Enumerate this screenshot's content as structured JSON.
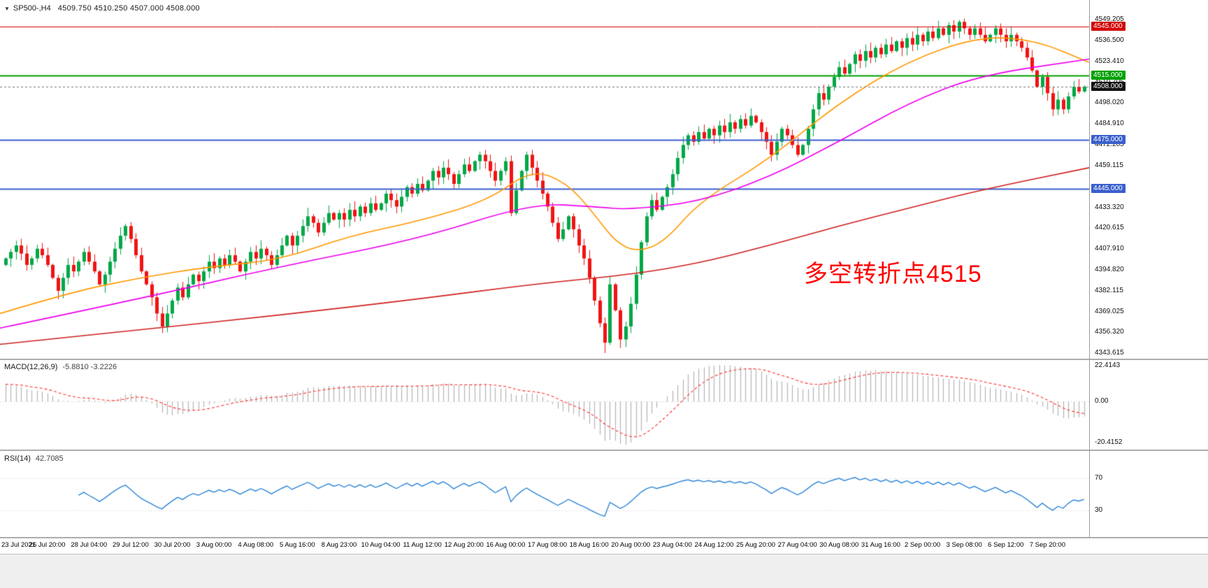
{
  "window": {
    "background": "#FFFFFF",
    "footer_color": "#EFEFEF"
  },
  "header": {
    "expander_icon": "▼",
    "symbol": "SP500-,H4",
    "ohlc": "4509.750 4510.250 4507.000 4508.000"
  },
  "annotation": {
    "text": "多空转折点4515",
    "color": "#FF0000"
  },
  "time_axis": {
    "bars_per_label": 8,
    "labels": [
      "23 Jul 2021",
      "26 Jul 20:00",
      "28 Jul 04:00",
      "29 Jul 12:00",
      "30 Jul 20:00",
      "3 Aug 00:00",
      "4 Aug 08:00",
      "5 Aug 16:00",
      "8 Aug 23:00",
      "10 Aug 04:00",
      "11 Aug 12:00",
      "12 Aug 20:00",
      "16 Aug 00:00",
      "17 Aug 08:00",
      "18 Aug 16:00",
      "20 Aug 00:00",
      "23 Aug 04:00",
      "24 Aug 12:00",
      "25 Aug 20:00",
      "27 Aug 04:00",
      "30 Aug 08:00",
      "31 Aug 16:00",
      "2 Sep 00:00",
      "3 Sep 08:00",
      "6 Sep 12:00",
      "7 Sep 20:00"
    ]
  },
  "chart_data": [
    {
      "type": "candlestick",
      "title": "SP500-,H4",
      "timeframe": "H4",
      "ylim": [
        4341,
        4552
      ],
      "extremes": {
        "high": 4549.205,
        "low": 4343.615
      },
      "y_ticks": [
        "4549.205",
        "4536.500",
        "4523.410",
        "4510.705",
        "4498.020",
        "4484.910",
        "4472.205",
        "4459.115",
        "4433.320",
        "4420.615",
        "4407.910",
        "4394.820",
        "4382.115",
        "4369.025",
        "4356.320",
        "4343.615"
      ],
      "badges": [
        {
          "text": "4545.000",
          "color": "#D40000"
        },
        {
          "text": "4515.000",
          "color": "#00A000"
        },
        {
          "text": "4508.000",
          "color": "#111111"
        },
        {
          "text": "4475.000",
          "color": "#3A5FCD"
        },
        {
          "text": "4445.000",
          "color": "#3A5FCD"
        }
      ],
      "horizontal_lines": [
        {
          "price": 4545.0,
          "color": "#D40000",
          "width": 1
        },
        {
          "price": 4515.0,
          "color": "#00A000",
          "width": 2
        },
        {
          "price": 4475.0,
          "color": "#3A5FCD",
          "width": 2
        },
        {
          "price": 4445.0,
          "color": "#3A5FCD",
          "width": 2
        }
      ],
      "current_price": 4508.0,
      "last_ohlc": {
        "open": 4509.75,
        "high": 4510.25,
        "low": 4507.0,
        "close": 4508.0
      },
      "up_color": "#00A846",
      "down_color": "#F01414",
      "first_open": 4398,
      "closes": [
        4402,
        4406,
        4410,
        4405,
        4398,
        4402,
        4408,
        4404,
        4398,
        4390,
        4382,
        4390,
        4398,
        4394,
        4400,
        4406,
        4400,
        4394,
        4386,
        4392,
        4400,
        4408,
        4416,
        4422,
        4414,
        4404,
        4394,
        4386,
        4378,
        4368,
        4360,
        4368,
        4376,
        4384,
        4378,
        4386,
        4392,
        4388,
        4394,
        4400,
        4396,
        4402,
        4398,
        4404,
        4400,
        4394,
        4400,
        4406,
        4402,
        4408,
        4404,
        4398,
        4404,
        4410,
        4416,
        4410,
        4416,
        4422,
        4428,
        4424,
        4418,
        4424,
        4430,
        4426,
        4430,
        4426,
        4432,
        4428,
        4434,
        4430,
        4436,
        4432,
        4436,
        4442,
        4438,
        4434,
        4440,
        4446,
        4442,
        4448,
        4444,
        4450,
        4456,
        4452,
        4458,
        4454,
        4448,
        4454,
        4460,
        4456,
        4462,
        4466,
        4462,
        4456,
        4450,
        4456,
        4462,
        4430,
        4444,
        4456,
        4466,
        4458,
        4450,
        4442,
        4434,
        4424,
        4414,
        4420,
        4428,
        4420,
        4410,
        4402,
        4390,
        4376,
        4362,
        4350,
        4386,
        4370,
        4352,
        4360,
        4374,
        4392,
        4412,
        4428,
        4438,
        4432,
        4440,
        4446,
        4454,
        4464,
        4472,
        4478,
        4474,
        4480,
        4476,
        4482,
        4478,
        4484,
        4480,
        4486,
        4482,
        4488,
        4484,
        4490,
        4486,
        4480,
        4474,
        4466,
        4474,
        4482,
        4478,
        4472,
        4466,
        4472,
        4482,
        4494,
        4504,
        4500,
        4508,
        4514,
        4520,
        4516,
        4522,
        4528,
        4524,
        4530,
        4526,
        4532,
        4528,
        4534,
        4530,
        4536,
        4532,
        4538,
        4534,
        4540,
        4536,
        4542,
        4538,
        4544,
        4540,
        4546,
        4542,
        4548,
        4544,
        4540,
        4544,
        4540,
        4536,
        4540,
        4544,
        4540,
        4536,
        4540,
        4536,
        4532,
        4526,
        4518,
        4508,
        4514,
        4504,
        4494,
        4500,
        4494,
        4502,
        4508,
        4505,
        4508
      ],
      "moving_averages": [
        {
          "name": "ma-fast",
          "color": "#FF9900",
          "points": [
            [
              0,
              4368
            ],
            [
              0.064,
              4381
            ],
            [
              0.128,
              4390
            ],
            [
              0.193,
              4397
            ],
            [
              0.257,
              4401
            ],
            [
              0.321,
              4416
            ],
            [
              0.385,
              4425
            ],
            [
              0.449,
              4438
            ],
            [
              0.488,
              4457
            ],
            [
              0.52,
              4449
            ],
            [
              0.545,
              4430
            ],
            [
              0.565,
              4412
            ],
            [
              0.585,
              4406
            ],
            [
              0.61,
              4412
            ],
            [
              0.642,
              4437
            ],
            [
              0.706,
              4463
            ],
            [
              0.77,
              4498
            ],
            [
              0.834,
              4524
            ],
            [
              0.899,
              4539
            ],
            [
              0.95,
              4537
            ],
            [
              1,
              4523
            ]
          ]
        },
        {
          "name": "ma-medium",
          "color": "#EE00EE",
          "points": [
            [
              0,
              4359
            ],
            [
              0.128,
              4377
            ],
            [
              0.257,
              4397
            ],
            [
              0.385,
              4414
            ],
            [
              0.488,
              4436
            ],
            [
              0.545,
              4434
            ],
            [
              0.578,
              4432
            ],
            [
              0.642,
              4437
            ],
            [
              0.706,
              4452
            ],
            [
              0.77,
              4474
            ],
            [
              0.834,
              4498
            ],
            [
              0.899,
              4515
            ],
            [
              1,
              4525
            ]
          ]
        },
        {
          "name": "ma-slow",
          "color": "#D02020",
          "points": [
            [
              0,
              4349
            ],
            [
              0.128,
              4358
            ],
            [
              0.257,
              4367
            ],
            [
              0.385,
              4377
            ],
            [
              0.488,
              4386
            ],
            [
              0.578,
              4392
            ],
            [
              0.642,
              4399
            ],
            [
              0.706,
              4410
            ],
            [
              0.77,
              4422
            ],
            [
              0.834,
              4433
            ],
            [
              0.899,
              4444
            ],
            [
              1,
              4458
            ]
          ]
        }
      ]
    },
    {
      "type": "macd-histogram",
      "label": "MACD(12,26,9)",
      "values_text": "-5.8810 -3.2226",
      "params": [
        12,
        26,
        9
      ],
      "y_tick_labels": [
        "22.4143",
        "0.00",
        "-20.4152"
      ],
      "histogram_color": "#B4B4B4",
      "signal_color": "#FF3030"
    },
    {
      "type": "rsi-line",
      "label": "RSI(14)",
      "values_text": "42.7085",
      "period": 14,
      "levels": [
        70,
        30
      ],
      "level_labels": [
        "70",
        "30"
      ],
      "line_color": "#2E86D8"
    }
  ]
}
